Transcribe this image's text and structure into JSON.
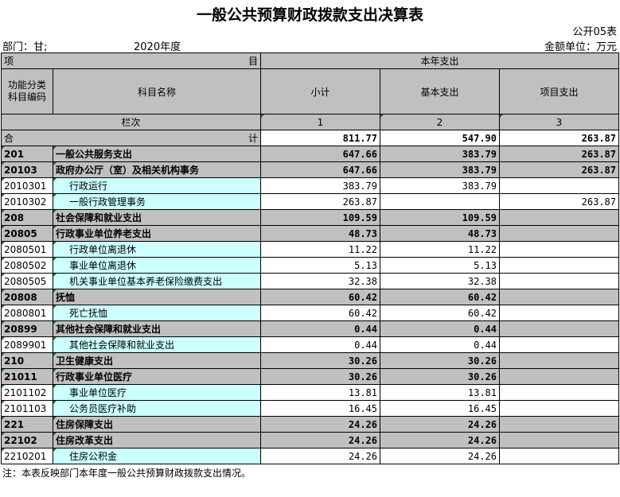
{
  "title": "一般公共预算财政拨款支出决算表",
  "form_no": "公开05表",
  "department": "部门：甘;",
  "year": "2020年度",
  "unit": "金额单位：万元",
  "header": {
    "item_left": "项",
    "item_right": "目",
    "current_year": "本年支出",
    "code": "功能分类科目编码",
    "name": "科目名称",
    "subtotal": "小计",
    "basic": "基本支出",
    "project": "项目支出",
    "col_index": "栏次",
    "idx1": "1",
    "idx2": "2",
    "idx3": "3",
    "total_left": "合",
    "total_right": "计"
  },
  "total": {
    "subtotal": "811.77",
    "basic": "547.90",
    "project": "263.87"
  },
  "rows": [
    {
      "code": "201",
      "name": "一般公共服务支出",
      "subtotal": "647.66",
      "basic": "383.79",
      "project": "263.87",
      "bold": true
    },
    {
      "code": "20103",
      "name": "政府办公厅（室）及相关机构事务",
      "subtotal": "647.66",
      "basic": "383.79",
      "project": "263.87",
      "bold": true
    },
    {
      "code": "2010301",
      "name": "行政运行",
      "subtotal": "383.79",
      "basic": "383.79",
      "project": ""
    },
    {
      "code": "2010302",
      "name": "一般行政管理事务",
      "subtotal": "263.87",
      "basic": "",
      "project": "263.87"
    },
    {
      "code": "208",
      "name": "社会保障和就业支出",
      "subtotal": "109.59",
      "basic": "109.59",
      "project": "",
      "bold": true
    },
    {
      "code": "20805",
      "name": "行政事业单位养老支出",
      "subtotal": "48.73",
      "basic": "48.73",
      "project": "",
      "bold": true
    },
    {
      "code": "2080501",
      "name": "行政单位离退休",
      "subtotal": "11.22",
      "basic": "11.22",
      "project": ""
    },
    {
      "code": "2080502",
      "name": "事业单位离退休",
      "subtotal": "5.13",
      "basic": "5.13",
      "project": ""
    },
    {
      "code": "2080505",
      "name": "机关事业单位基本养老保险缴费支出",
      "subtotal": "32.38",
      "basic": "32.38",
      "project": ""
    },
    {
      "code": "20808",
      "name": "抚恤",
      "subtotal": "60.42",
      "basic": "60.42",
      "project": "",
      "bold": true
    },
    {
      "code": "2080801",
      "name": "死亡抚恤",
      "subtotal": "60.42",
      "basic": "60.42",
      "project": ""
    },
    {
      "code": "20899",
      "name": "其他社会保障和就业支出",
      "subtotal": "0.44",
      "basic": "0.44",
      "project": "",
      "bold": true
    },
    {
      "code": "2089901",
      "name": "其他社会保障和就业支出",
      "subtotal": "0.44",
      "basic": "0.44",
      "project": ""
    },
    {
      "code": "210",
      "name": "卫生健康支出",
      "subtotal": "30.26",
      "basic": "30.26",
      "project": "",
      "bold": true
    },
    {
      "code": "21011",
      "name": "行政事业单位医疗",
      "subtotal": "30.26",
      "basic": "30.26",
      "project": "",
      "bold": true
    },
    {
      "code": "2101102",
      "name": "事业单位医疗",
      "subtotal": "13.81",
      "basic": "13.81",
      "project": ""
    },
    {
      "code": "2101103",
      "name": "公务员医疗补助",
      "subtotal": "16.45",
      "basic": "16.45",
      "project": ""
    },
    {
      "code": "221",
      "name": "住房保障支出",
      "subtotal": "24.26",
      "basic": "24.26",
      "project": "",
      "bold": true
    },
    {
      "code": "22102",
      "name": "住房改革支出",
      "subtotal": "24.26",
      "basic": "24.26",
      "project": "",
      "bold": true
    },
    {
      "code": "2210201",
      "name": "住房公积金",
      "subtotal": "24.26",
      "basic": "24.26",
      "project": ""
    }
  ],
  "note": "注：本表反映部门本年度一般公共预算财政拨款支出情况。"
}
